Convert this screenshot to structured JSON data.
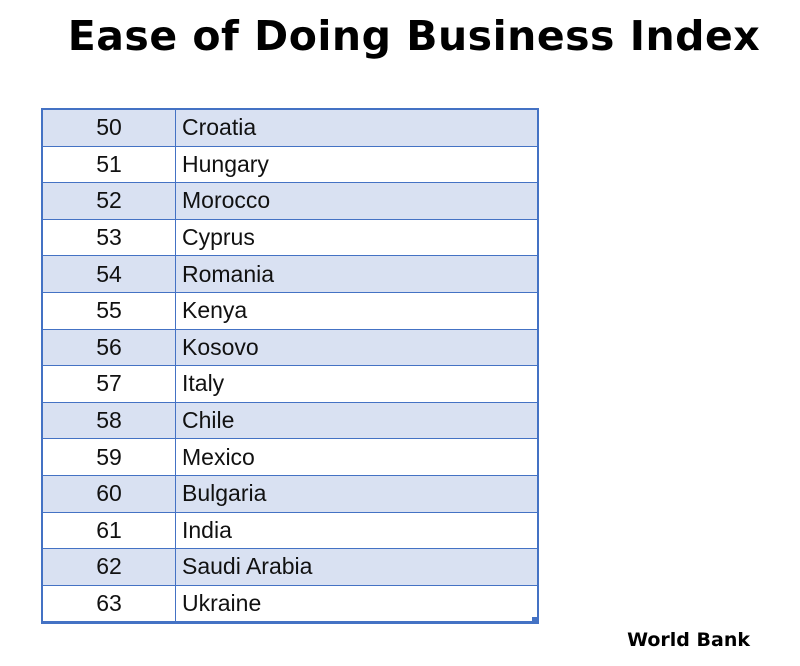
{
  "title": "Ease of Doing Business Index",
  "source": "World Bank",
  "colors": {
    "border": "#4472c4",
    "shaded_row": "#d9e1f2",
    "text": "#111111"
  },
  "table": {
    "rows": [
      {
        "rank": "50",
        "country": "Croatia"
      },
      {
        "rank": "51",
        "country": "Hungary"
      },
      {
        "rank": "52",
        "country": "Morocco"
      },
      {
        "rank": "53",
        "country": "Cyprus"
      },
      {
        "rank": "54",
        "country": "Romania"
      },
      {
        "rank": "55",
        "country": "Kenya"
      },
      {
        "rank": "56",
        "country": "Kosovo"
      },
      {
        "rank": "57",
        "country": "Italy"
      },
      {
        "rank": "58",
        "country": "Chile"
      },
      {
        "rank": "59",
        "country": "Mexico"
      },
      {
        "rank": "60",
        "country": "Bulgaria"
      },
      {
        "rank": "61",
        "country": "India"
      },
      {
        "rank": "62",
        "country": "Saudi Arabia"
      },
      {
        "rank": "63",
        "country": "Ukraine"
      }
    ]
  }
}
